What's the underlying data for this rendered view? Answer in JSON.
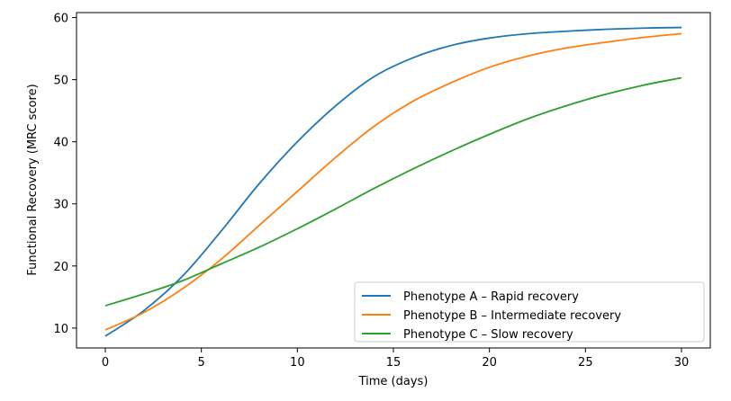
{
  "chart_data": {
    "type": "line",
    "title": "",
    "xlabel": "Time (days)",
    "ylabel": "Functional Recovery (MRC score)",
    "xlim": [
      -1.5,
      31.5
    ],
    "ylim": [
      6.8,
      60.8
    ],
    "xticks": [
      0,
      5,
      10,
      15,
      20,
      25,
      30
    ],
    "yticks": [
      10,
      20,
      30,
      40,
      50,
      60
    ],
    "grid": false,
    "legend_position": "lower-right",
    "series": [
      {
        "name": "Phenotype A – Rapid recovery",
        "color": "#1f77b4",
        "x": [
          0,
          2,
          4,
          6,
          8,
          10,
          12,
          14,
          16,
          18,
          20,
          22,
          24,
          26,
          28,
          30
        ],
        "y": [
          8.7,
          12.8,
          18.3,
          25.5,
          33.2,
          40.0,
          45.8,
          50.5,
          53.5,
          55.5,
          56.7,
          57.4,
          57.8,
          58.1,
          58.3,
          58.4
        ]
      },
      {
        "name": "Phenotype B – Intermediate recovery",
        "color": "#ff7f0e",
        "x": [
          0,
          2,
          4,
          6,
          8,
          10,
          12,
          14,
          16,
          18,
          20,
          22,
          24,
          26,
          28,
          30
        ],
        "y": [
          9.7,
          12.5,
          16.3,
          21.0,
          26.5,
          32.0,
          37.5,
          42.5,
          46.5,
          49.5,
          52.0,
          53.8,
          55.1,
          56.0,
          56.8,
          57.4
        ]
      },
      {
        "name": "Phenotype C – Slow recovery",
        "color": "#2ca02c",
        "x": [
          0,
          2,
          4,
          6,
          8,
          10,
          12,
          14,
          16,
          18,
          20,
          22,
          24,
          26,
          28,
          30
        ],
        "y": [
          13.6,
          15.5,
          17.6,
          20.3,
          23.0,
          26.0,
          29.2,
          32.5,
          35.6,
          38.5,
          41.2,
          43.7,
          45.8,
          47.6,
          49.1,
          50.3
        ]
      }
    ]
  }
}
